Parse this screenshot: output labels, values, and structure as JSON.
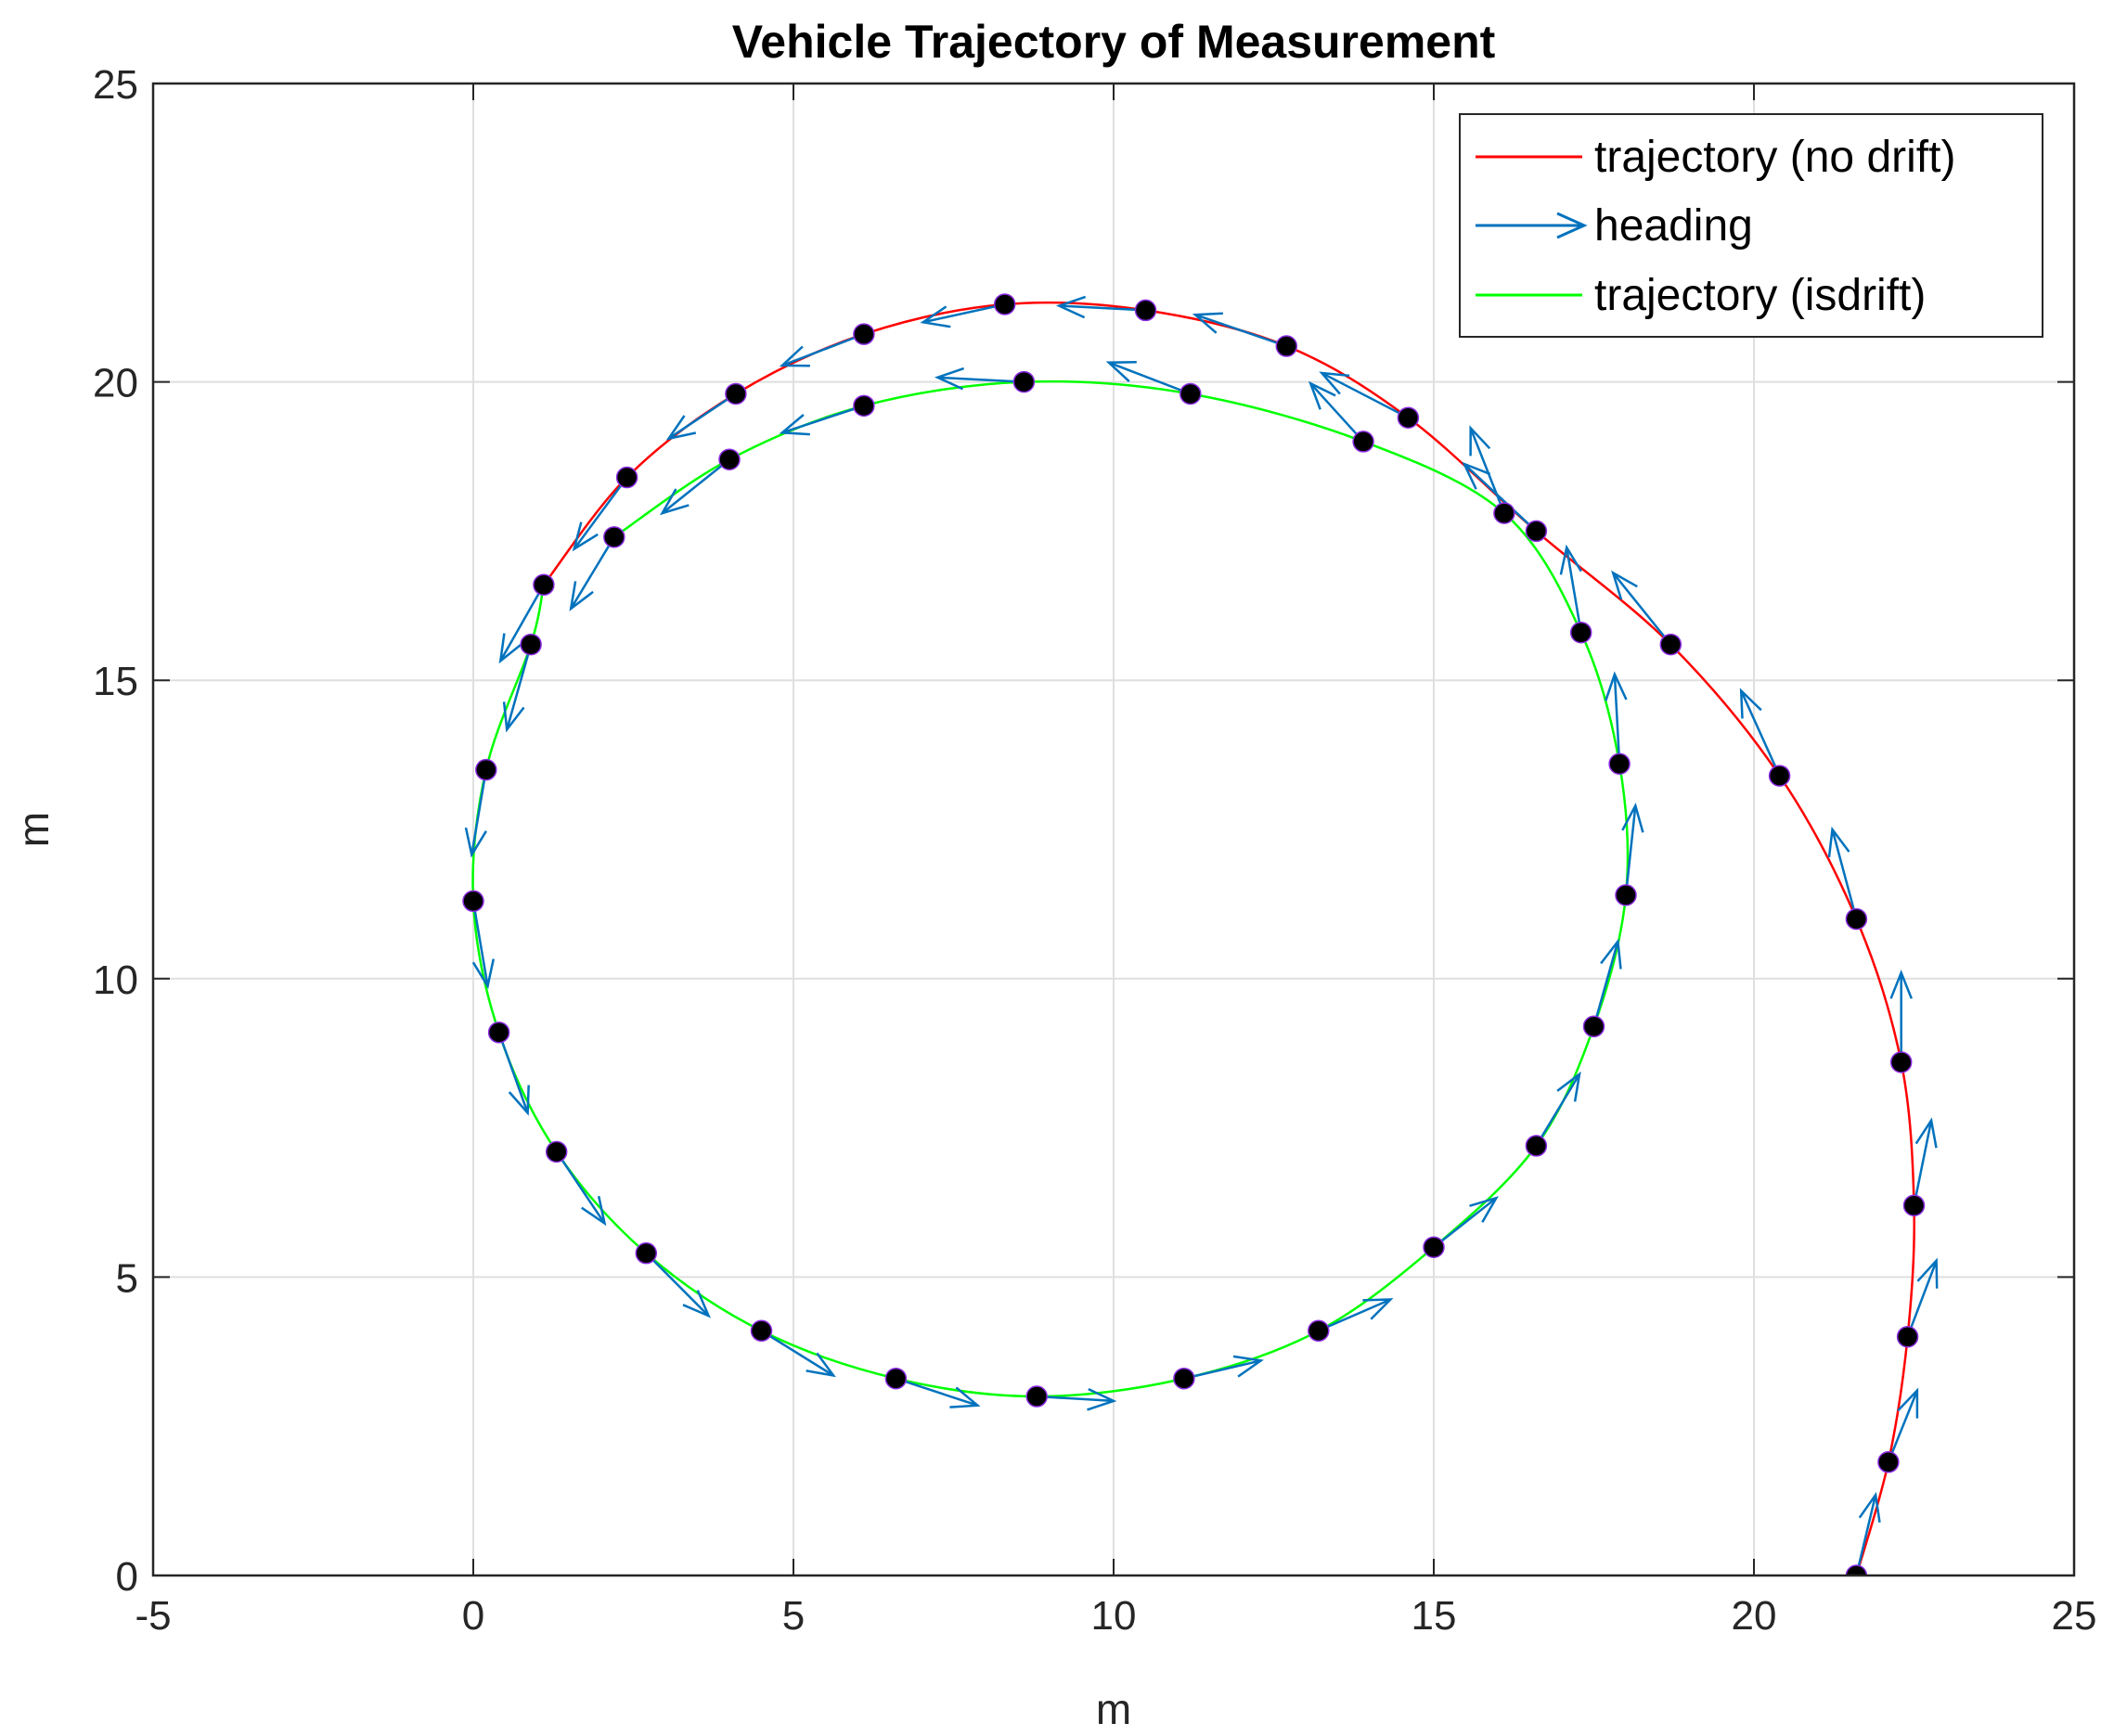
{
  "chart_data": {
    "type": "line",
    "title": "Vehicle Trajectory of Measurement",
    "xlabel": "m",
    "ylabel": "m",
    "xlim": [
      -5,
      25
    ],
    "ylim": [
      0,
      25
    ],
    "xticks": [
      -5,
      0,
      5,
      10,
      15,
      20,
      25
    ],
    "yticks": [
      0,
      5,
      10,
      15,
      20,
      25
    ],
    "grid": true,
    "legend_position": "top-right",
    "series": [
      {
        "name": "trajectory (no drift)",
        "color": "#ff0000",
        "x": [
          21.6,
          22.1,
          22.4,
          22.5,
          22.3,
          21.6,
          20.4,
          18.7,
          16.6,
          14.6,
          12.7,
          10.5,
          8.3,
          6.1,
          4.1,
          2.4,
          1.1
        ],
        "y": [
          0.0,
          1.9,
          4.0,
          6.2,
          8.6,
          11.0,
          13.4,
          15.6,
          17.5,
          19.4,
          20.6,
          21.2,
          21.3,
          20.8,
          19.8,
          18.4,
          16.6
        ]
      },
      {
        "name": "heading",
        "color": "#0072bd",
        "x": [
          21.6,
          22.1,
          22.4,
          22.5,
          22.3,
          21.6,
          20.4,
          18.7,
          16.6,
          14.6,
          12.7,
          10.5,
          8.3,
          6.1,
          4.1,
          2.4,
          1.1,
          0.9,
          0.2,
          0.0,
          0.4,
          1.3,
          2.7,
          4.5,
          6.6,
          8.8,
          11.1,
          13.2,
          15.0,
          16.6,
          17.5,
          18.0,
          17.9,
          17.3,
          16.1,
          13.9,
          11.2,
          8.6,
          6.1,
          4.0,
          2.2
        ],
        "y": [
          0.0,
          1.9,
          4.0,
          6.2,
          8.6,
          11.0,
          13.4,
          15.6,
          17.5,
          19.4,
          20.6,
          21.2,
          21.3,
          20.8,
          19.8,
          18.4,
          16.6,
          15.6,
          13.5,
          11.3,
          9.1,
          7.1,
          5.4,
          4.1,
          3.3,
          3.0,
          3.3,
          4.1,
          5.5,
          7.2,
          9.2,
          11.4,
          13.6,
          15.8,
          17.8,
          19.0,
          19.8,
          20.0,
          19.6,
          18.7,
          17.4
        ],
        "u": [
          0.2,
          0.3,
          0.3,
          0.18,
          0.0,
          -0.25,
          -0.4,
          -0.6,
          -0.75,
          -0.9,
          -0.95,
          -0.9,
          -0.85,
          -0.85,
          -0.7,
          -0.55,
          -0.45,
          -0.25,
          -0.15,
          0.15,
          0.3,
          0.5,
          0.65,
          0.75,
          0.85,
          0.8,
          0.8,
          0.75,
          0.65,
          0.45,
          0.25,
          0.1,
          -0.05,
          -0.15,
          -0.35,
          -0.55,
          -0.85,
          -0.9,
          -0.85,
          -0.7,
          -0.45
        ],
        "v": [
          0.9,
          0.8,
          0.85,
          0.95,
          1.0,
          1.0,
          0.95,
          0.8,
          0.75,
          0.5,
          0.35,
          0.05,
          -0.2,
          -0.35,
          -0.5,
          -0.8,
          -0.85,
          -0.95,
          -0.95,
          -0.95,
          -0.9,
          -0.8,
          -0.7,
          -0.5,
          -0.3,
          -0.05,
          0.2,
          0.35,
          0.55,
          0.8,
          0.95,
          1.0,
          1.0,
          0.95,
          0.95,
          0.65,
          0.35,
          0.05,
          -0.3,
          -0.6,
          -0.8
        ]
      },
      {
        "name": "trajectory (isdrift)",
        "color": "#00ff00",
        "x": [
          1.1,
          0.9,
          0.2,
          0.0,
          0.4,
          1.3,
          2.7,
          4.5,
          6.6,
          8.8,
          11.1,
          13.2,
          15.0,
          16.6,
          17.5,
          18.0,
          17.9,
          17.3,
          16.1,
          13.9,
          11.2,
          8.6,
          6.1,
          4.0,
          2.2
        ],
        "y": [
          16.6,
          15.6,
          13.5,
          11.3,
          9.1,
          7.1,
          5.4,
          4.1,
          3.3,
          3.0,
          3.3,
          4.1,
          5.5,
          7.2,
          9.2,
          11.4,
          13.6,
          15.8,
          17.8,
          19.0,
          19.8,
          20.0,
          19.6,
          18.7,
          17.4
        ]
      }
    ]
  }
}
